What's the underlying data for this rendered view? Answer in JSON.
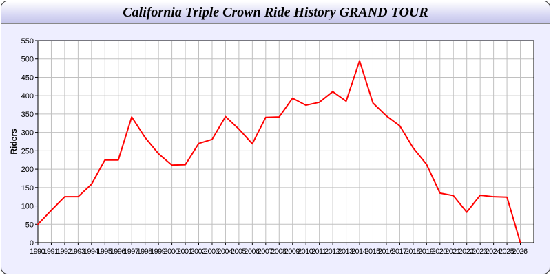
{
  "chart_data": {
    "type": "line",
    "title": "California Triple Crown Ride History GRAND TOUR",
    "xlabel": "",
    "ylabel": "Riders",
    "x": [
      1990,
      1991,
      1992,
      1993,
      1994,
      1995,
      1996,
      1997,
      1998,
      1999,
      2000,
      2001,
      2002,
      2003,
      2004,
      2005,
      2006,
      2007,
      2008,
      2009,
      2010,
      2011,
      2012,
      2013,
      2014,
      2015,
      2016,
      2017,
      2018,
      2019,
      2020,
      2021,
      2022,
      2023,
      2024,
      2025,
      2026
    ],
    "values": [
      50,
      88,
      125,
      125,
      159,
      225,
      225,
      342,
      286,
      242,
      211,
      212,
      270,
      281,
      343,
      309,
      269,
      341,
      342,
      393,
      374,
      382,
      411,
      385,
      495,
      380,
      345,
      318,
      258,
      213,
      135,
      128,
      83,
      129,
      125,
      124,
      0
    ],
    "xlim": [
      1990,
      2027
    ],
    "ylim": [
      0,
      550
    ],
    "yticks": [
      0,
      50,
      100,
      150,
      200,
      250,
      300,
      350,
      400,
      450,
      500,
      550
    ],
    "grid": true,
    "line_color": "#ff0000",
    "grid_color": "#c0c0c0",
    "background": "#eeeeff"
  }
}
